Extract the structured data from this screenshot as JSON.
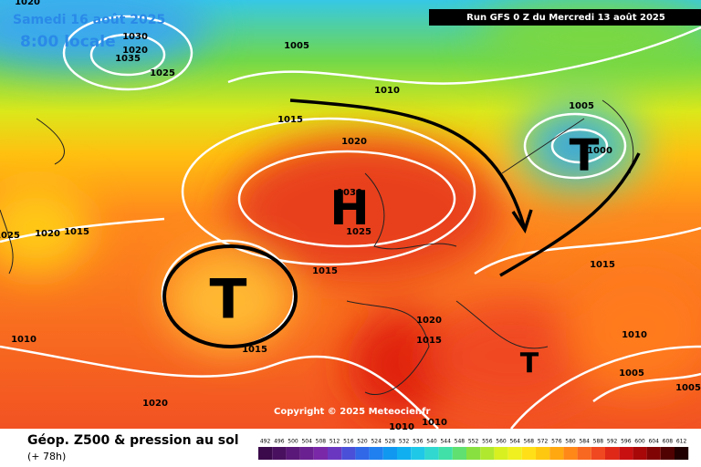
{
  "header": {
    "date": "Samedi 16 août 2025",
    "time": "8:00 locale",
    "run": "Run GFS 0 Z du Mercredi 13 août 2025"
  },
  "copyright": "Copyright © 2025 Meteociel.fr",
  "isobar_labels": [
    "1020",
    "1030",
    "1020",
    "1035",
    "1025",
    "1005",
    "1010",
    "1015",
    "1020",
    "1030",
    "1025",
    "1005",
    "1000",
    "1025",
    "1020",
    "1015",
    "1015",
    "1015",
    "1010",
    "1015",
    "1020",
    "1015",
    "1010",
    "1005",
    "1005",
    "1020",
    "1010",
    "1010"
  ],
  "pressure_centers": [
    "H",
    "T",
    "T",
    "T"
  ],
  "legend": {
    "title": "Géop. Z500 & pression au sol",
    "subtitle": "(+ 78h)",
    "scale": [
      492,
      496,
      500,
      504,
      508,
      512,
      516,
      520,
      524,
      528,
      532,
      536,
      540,
      544,
      548,
      552,
      556,
      560,
      564,
      568,
      572,
      576,
      580,
      584,
      588,
      592,
      596,
      600,
      604,
      608,
      612
    ],
    "colors": [
      "#3a0a4a",
      "#4a1060",
      "#5a1878",
      "#6a2090",
      "#7a28a8",
      "#6a38c0",
      "#4a50d8",
      "#3068e8",
      "#2080f0",
      "#1098f0",
      "#10b0f0",
      "#20c8e8",
      "#30d8d0",
      "#40e0a8",
      "#60e070",
      "#88e040",
      "#b0e830",
      "#d8f020",
      "#f0f020",
      "#ffe018",
      "#ffc810",
      "#ffa810",
      "#ff8818",
      "#f86820",
      "#f04820",
      "#e02818",
      "#c81010",
      "#a80808",
      "#800404",
      "#500202",
      "#200000"
    ]
  }
}
